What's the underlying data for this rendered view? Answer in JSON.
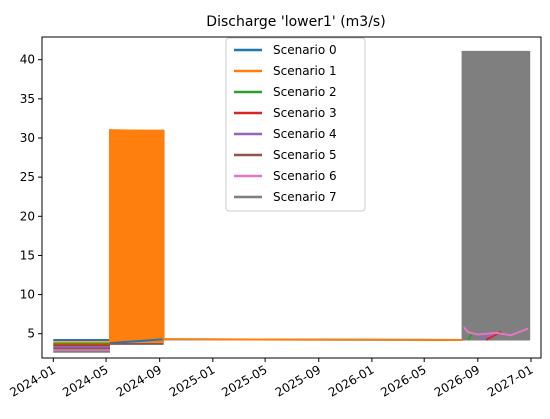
{
  "chart_data": {
    "type": "line",
    "title": "Discharge 'lower1' (m3/s)",
    "xlabel": "",
    "ylabel": "",
    "x_axis": {
      "type": "date",
      "range": [
        "2023-12-06",
        "2027-01-24"
      ],
      "ticks": [
        "2024-01-01",
        "2024-05-01",
        "2024-09-01",
        "2025-01-01",
        "2025-05-01",
        "2025-09-01",
        "2026-01-01",
        "2026-05-01",
        "2026-09-01",
        "2027-01-01"
      ],
      "tick_labels": [
        "2024-01",
        "2024-05",
        "2024-09",
        "2025-01",
        "2025-05",
        "2025-09",
        "2026-01",
        "2026-05",
        "2026-09",
        "2027-01"
      ],
      "tick_label_rotation": 30
    },
    "y_axis": {
      "range": [
        1.9,
        42.9
      ],
      "ticks": [
        5,
        10,
        15,
        20,
        25,
        30,
        35,
        40
      ],
      "tick_labels": [
        "5",
        "10",
        "15",
        "20",
        "25",
        "30",
        "35",
        "40"
      ]
    },
    "grid": false,
    "legend": {
      "placement": "top-center",
      "entries": [
        "Scenario 0",
        "Scenario 1",
        "Scenario 2",
        "Scenario 3",
        "Scenario 4",
        "Scenario 5",
        "Scenario 6",
        "Scenario 7"
      ]
    },
    "series": [
      {
        "name": "Scenario 0",
        "color": "#1f77b4",
        "segments": [
          {
            "x": [
              "2024-01-01",
              "2024-05-10"
            ],
            "y": [
              4.2,
              4.2
            ]
          },
          {
            "x": [
              "2024-05-10",
              "2024-09-10",
              "2026-07-28"
            ],
            "y": [
              3.8,
              4.3,
              4.2
            ]
          }
        ]
      },
      {
        "name": "Scenario 1",
        "color": "#ff7f0e",
        "segments": [
          {
            "x": [
              "2024-01-01",
              "2024-05-10"
            ],
            "y": [
              3.9,
              3.9
            ]
          },
          {
            "x": [
              "2024-05-10",
              "2024-05-10",
              "2024-09-10",
              "2024-09-10"
            ],
            "y": [
              4.0,
              31.0,
              30.9,
              4.2
            ]
          },
          {
            "x": [
              "2024-09-10",
              "2026-07-28"
            ],
            "y": [
              4.3,
              4.2
            ]
          }
        ],
        "oscillation_band": {
          "x_start": "2024-05-10",
          "x_end": "2024-09-10",
          "y_low": 3.9,
          "y_high": 31.0
        }
      },
      {
        "name": "Scenario 2",
        "color": "#2ca02c",
        "segments": [
          {
            "x": [
              "2024-01-01",
              "2024-05-10"
            ],
            "y": [
              3.7,
              3.7
            ]
          },
          {
            "x": [
              "2026-08-10",
              "2026-08-20"
            ],
            "y": [
              4.2,
              5.2
            ]
          }
        ]
      },
      {
        "name": "Scenario 3",
        "color": "#d62728",
        "segments": [
          {
            "x": [
              "2024-01-01",
              "2024-05-10"
            ],
            "y": [
              3.5,
              3.5
            ]
          },
          {
            "x": [
              "2026-09-20",
              "2026-10-25"
            ],
            "y": [
              4.2,
              5.3
            ]
          }
        ]
      },
      {
        "name": "Scenario 4",
        "color": "#9467bd",
        "segments": [
          {
            "x": [
              "2024-01-01",
              "2024-05-10"
            ],
            "y": [
              3.3,
              3.3
            ]
          },
          {
            "x": [
              "2026-09-05",
              "2026-10-05"
            ],
            "y": [
              4.3,
              4.9
            ]
          }
        ]
      },
      {
        "name": "Scenario 5",
        "color": "#8c564b",
        "segments": [
          {
            "x": [
              "2024-01-01",
              "2024-05-10"
            ],
            "y": [
              3.1,
              3.1
            ]
          },
          {
            "x": [
              "2024-05-10",
              "2024-09-10"
            ],
            "y": [
              3.7,
              3.7
            ]
          }
        ]
      },
      {
        "name": "Scenario 6",
        "color": "#e377c2",
        "segments": [
          {
            "x": [
              "2024-01-01",
              "2024-05-10"
            ],
            "y": [
              2.9,
              2.9
            ]
          },
          {
            "x": [
              "2026-07-28",
              "2026-08-10",
              "2026-09-01",
              "2026-10-15",
              "2026-11-15",
              "2026-12-28"
            ],
            "y": [
              6.0,
              5.2,
              4.9,
              5.1,
              4.8,
              5.7
            ]
          }
        ]
      },
      {
        "name": "Scenario 7",
        "color": "#7f7f7f",
        "segments": [
          {
            "x": [
              "2024-01-01",
              "2024-05-10"
            ],
            "y": [
              2.7,
              2.7
            ]
          },
          {
            "x": [
              "2026-07-28",
              "2026-07-28",
              "2026-12-28",
              "2026-12-28"
            ],
            "y": [
              4.2,
              41.0,
              41.0,
              4.2
            ]
          }
        ],
        "oscillation_band": {
          "x_start": "2026-07-28",
          "x_end": "2026-12-28",
          "y_low": 4.2,
          "y_high": 41.0
        }
      }
    ]
  }
}
